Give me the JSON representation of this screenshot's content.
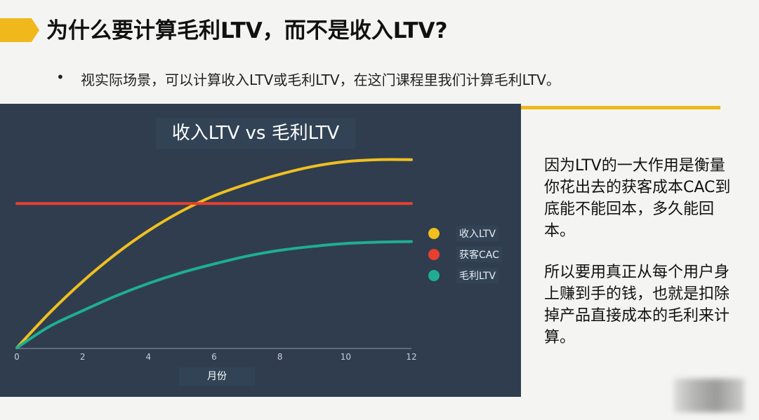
{
  "slide": {
    "title": "为什么要计算毛利LTV，而不是收入LTV?",
    "bullet": "视实际场景，可以计算收入LTV或毛利LTV，在这门课程里我们计算毛利LTV。",
    "bullet_marker": "•",
    "side_text_1": "因为LTV的一大作用是衡量你花出去的获客成本CAC到底能不能回本，多久能回本。",
    "side_text_2": "所以要用真正从每个用户身上赚到手的钱，也就是扣除掉产品直接成本的毛利来计算。",
    "accent_color": "#f0b81a"
  },
  "chart_data": {
    "type": "line",
    "title": "收入LTV vs 毛利LTV",
    "xlabel": "月份",
    "ylabel": "",
    "x_ticks": [
      0,
      2,
      4,
      6,
      8,
      10,
      12
    ],
    "xlim": [
      0,
      12
    ],
    "ylim": [
      0,
      1.0
    ],
    "grid": false,
    "legend_position": "right",
    "x": [
      0,
      1,
      2,
      3,
      4,
      5,
      6,
      7,
      8,
      9,
      10,
      11,
      12
    ],
    "series": [
      {
        "name": "收入LTV",
        "color": "#f0c020",
        "values": [
          0,
          0.18,
          0.34,
          0.48,
          0.6,
          0.7,
          0.78,
          0.84,
          0.89,
          0.93,
          0.955,
          0.965,
          0.965
        ]
      },
      {
        "name": "获客CAC",
        "color": "#e8402f",
        "values": [
          0.74,
          0.74,
          0.74,
          0.74,
          0.74,
          0.74,
          0.74,
          0.74,
          0.74,
          0.74,
          0.74,
          0.74,
          0.74
        ]
      },
      {
        "name": "毛利LTV",
        "color": "#1fae94",
        "values": [
          0,
          0.11,
          0.19,
          0.265,
          0.33,
          0.385,
          0.43,
          0.47,
          0.5,
          0.52,
          0.535,
          0.542,
          0.545
        ]
      }
    ]
  }
}
